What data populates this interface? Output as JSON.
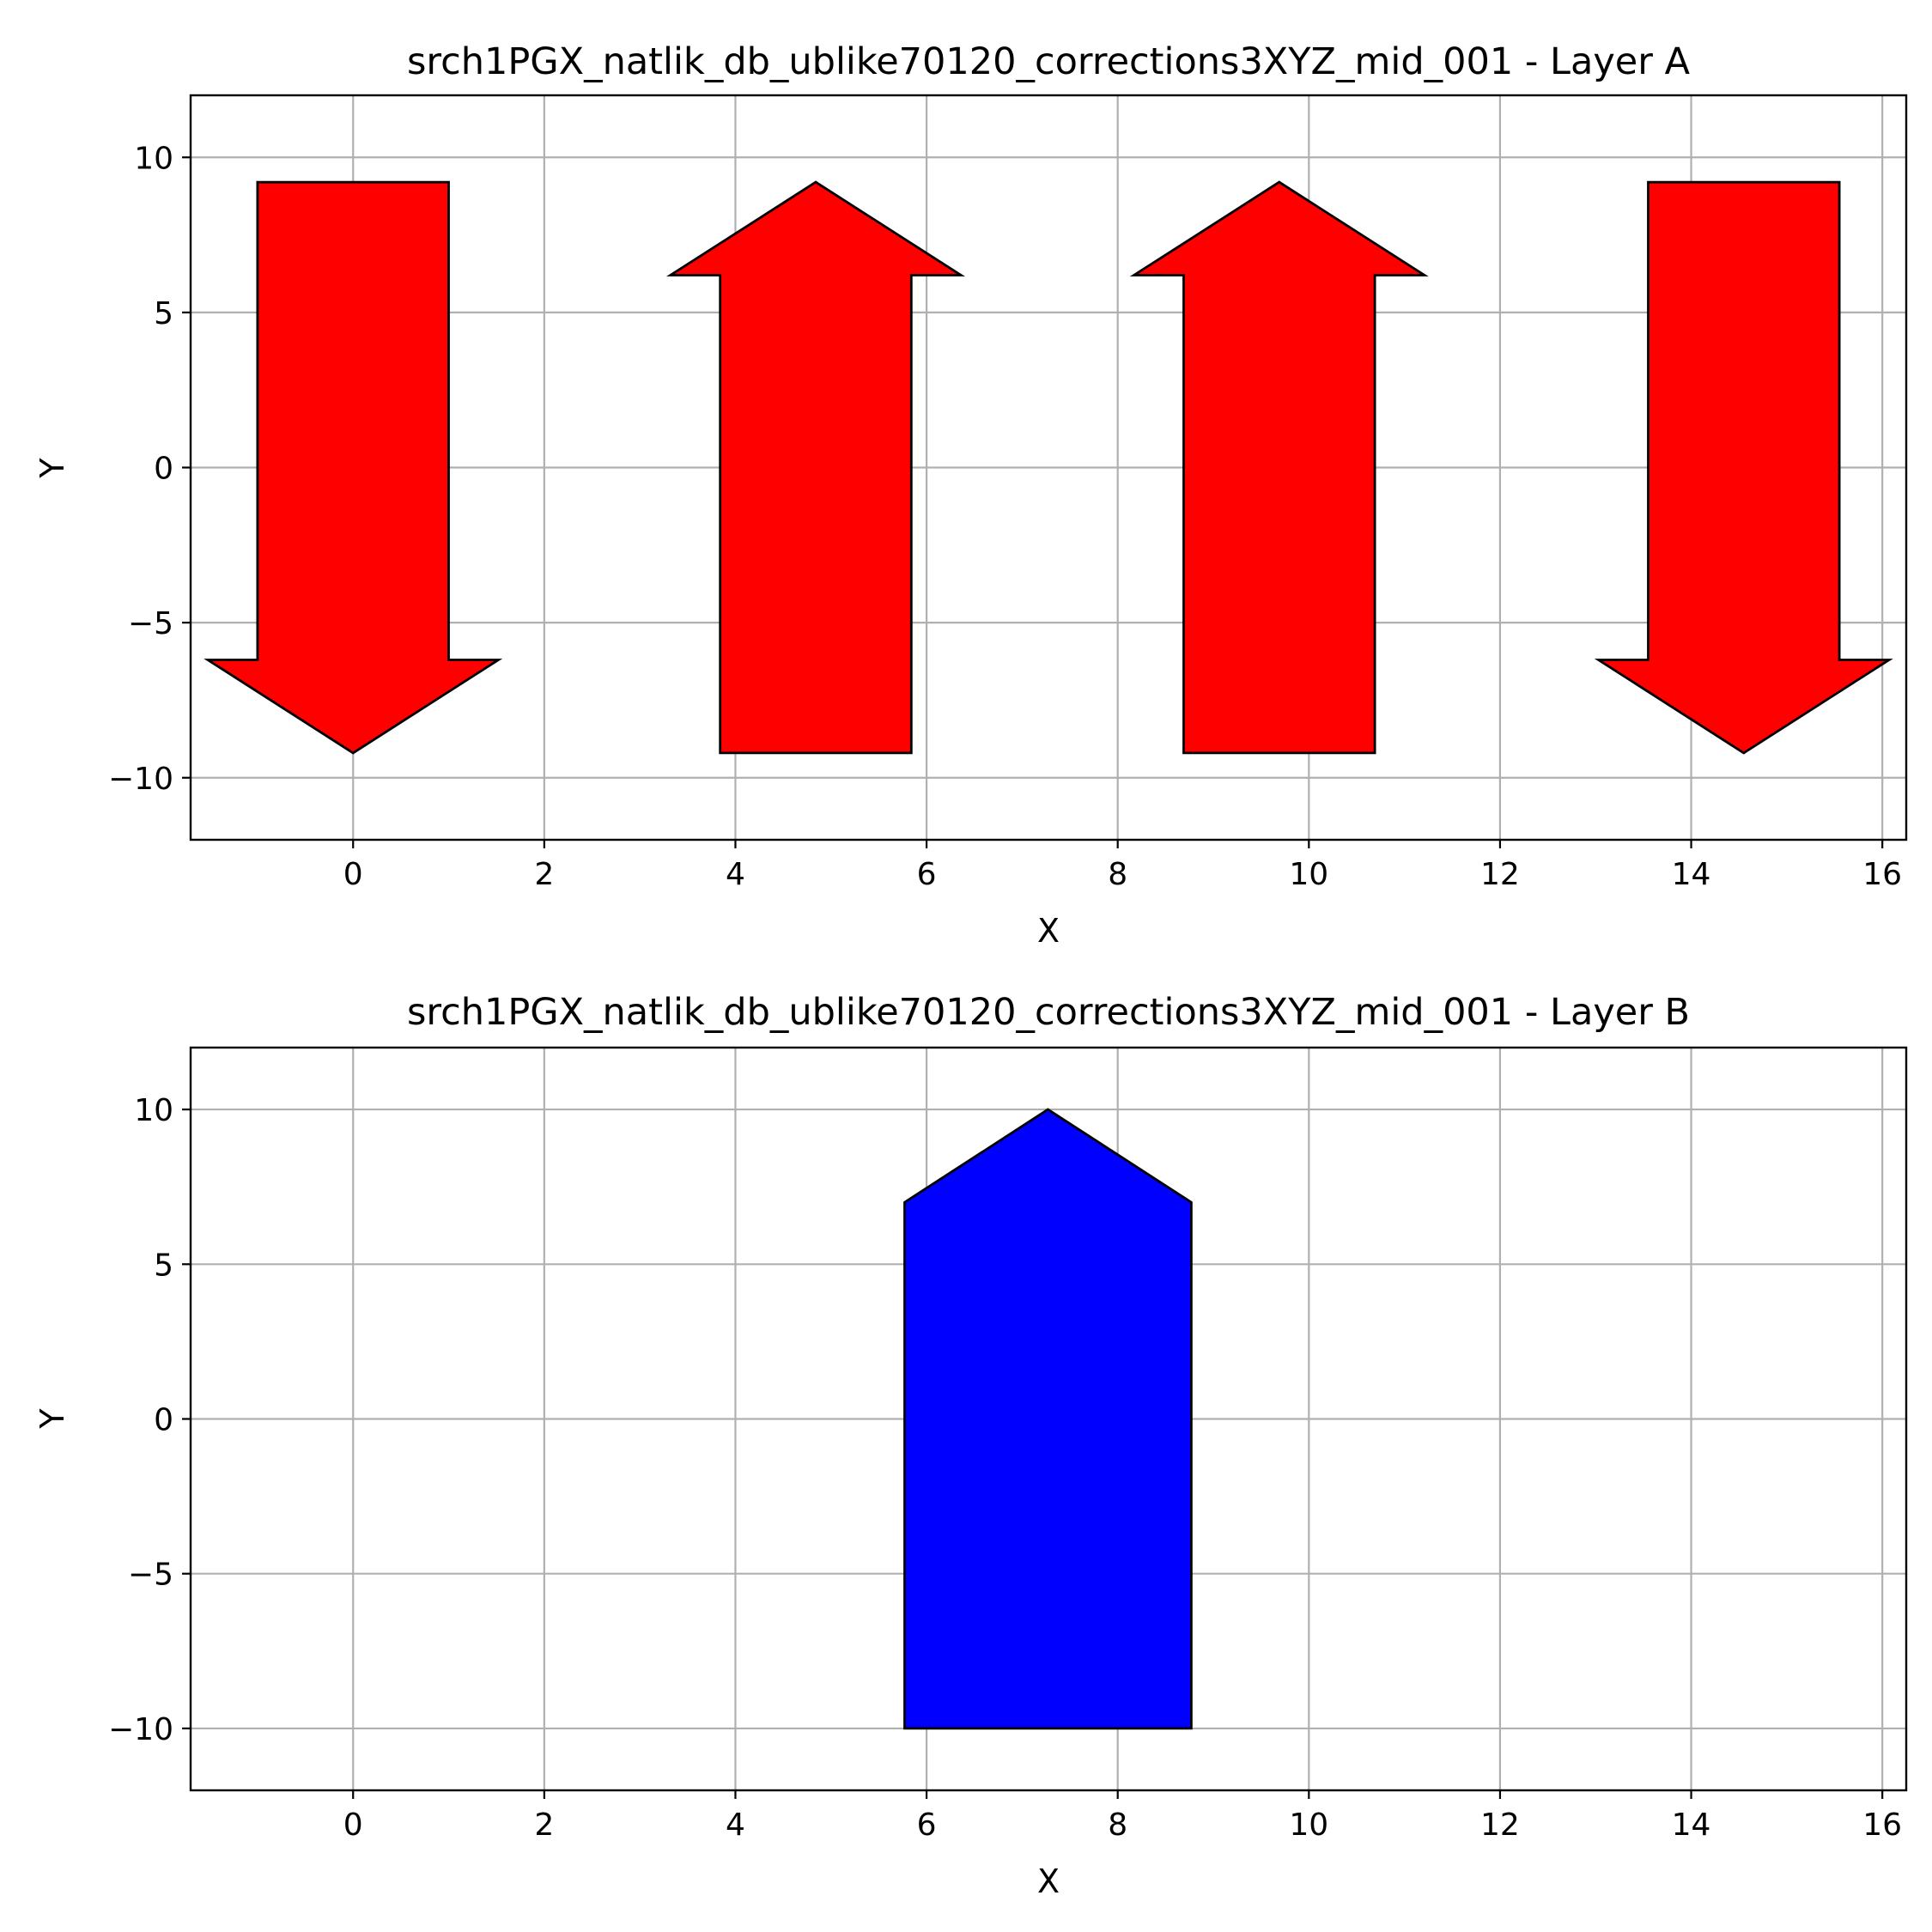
{
  "chart_data": [
    {
      "type": "polygon",
      "title": "srch1PGX_natlik_db_ublike70120_corrections3XYZ_mid_001 - Layer A",
      "xlabel": "X",
      "ylabel": "Y",
      "xlim": [
        -1.7,
        16.25
      ],
      "ylim": [
        -12,
        12
      ],
      "xticks": [
        0,
        2,
        4,
        6,
        8,
        10,
        12,
        14,
        16
      ],
      "yticks": [
        10,
        5,
        0,
        -5,
        -10
      ],
      "xtick_labels": [
        "0",
        "2",
        "4",
        "6",
        "8",
        "10",
        "12",
        "14",
        "16"
      ],
      "ytick_labels": [
        "10",
        "5",
        "0",
        "−5",
        "−10"
      ],
      "grid": true,
      "color": "#ff0000",
      "shapes": [
        {
          "kind": "arrow-down",
          "points": [
            [
              -1.0,
              9.2
            ],
            [
              1.0,
              9.2
            ],
            [
              1.0,
              -6.2
            ],
            [
              1.52,
              -6.2
            ],
            [
              0.0,
              -9.2
            ],
            [
              -1.52,
              -6.2
            ],
            [
              -1.0,
              -6.2
            ]
          ]
        },
        {
          "kind": "arrow-up",
          "points": [
            [
              3.84,
              -9.2
            ],
            [
              5.84,
              -9.2
            ],
            [
              5.84,
              6.2
            ],
            [
              6.36,
              6.2
            ],
            [
              4.84,
              9.2
            ],
            [
              3.32,
              6.2
            ],
            [
              3.84,
              6.2
            ]
          ]
        },
        {
          "kind": "arrow-up",
          "points": [
            [
              8.69,
              -9.2
            ],
            [
              10.69,
              -9.2
            ],
            [
              10.69,
              6.2
            ],
            [
              11.21,
              6.2
            ],
            [
              9.69,
              9.2
            ],
            [
              8.17,
              6.2
            ],
            [
              8.69,
              6.2
            ]
          ]
        },
        {
          "kind": "arrow-down",
          "points": [
            [
              13.55,
              9.2
            ],
            [
              15.55,
              9.2
            ],
            [
              15.55,
              -6.2
            ],
            [
              16.07,
              -6.2
            ],
            [
              14.55,
              -9.2
            ],
            [
              13.03,
              -6.2
            ],
            [
              13.55,
              -6.2
            ]
          ]
        }
      ]
    },
    {
      "type": "polygon",
      "title": "srch1PGX_natlik_db_ublike70120_corrections3XYZ_mid_001 - Layer B",
      "xlabel": "X",
      "ylabel": "Y",
      "xlim": [
        -1.7,
        16.25
      ],
      "ylim": [
        -12,
        12
      ],
      "xticks": [
        0,
        2,
        4,
        6,
        8,
        10,
        12,
        14,
        16
      ],
      "yticks": [
        10,
        5,
        0,
        -5,
        -10
      ],
      "xtick_labels": [
        "0",
        "2",
        "4",
        "6",
        "8",
        "10",
        "12",
        "14",
        "16"
      ],
      "ytick_labels": [
        "10",
        "5",
        "0",
        "−5",
        "−10"
      ],
      "grid": true,
      "color": "#0000ff",
      "shapes": [
        {
          "kind": "pentagon",
          "points": [
            [
              5.77,
              -10.0
            ],
            [
              8.77,
              -10.0
            ],
            [
              8.77,
              7.0
            ],
            [
              7.27,
              10.0
            ],
            [
              5.77,
              7.0
            ]
          ]
        }
      ]
    }
  ]
}
